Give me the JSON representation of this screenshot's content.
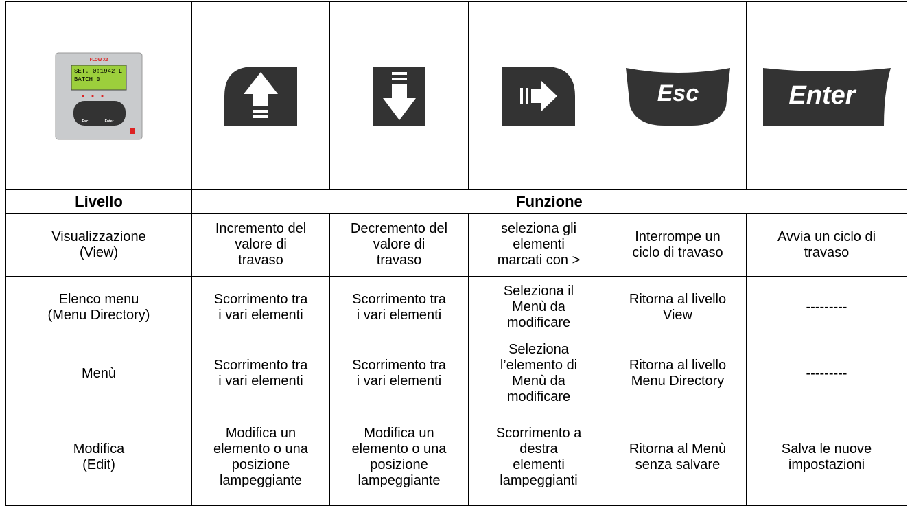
{
  "device": {
    "brand": "FLOW X3",
    "lcd": [
      "SET. 0:1942 L",
      "BATCH 0"
    ]
  },
  "buttons": {
    "esc": "Esc",
    "enter": "Enter"
  },
  "header": {
    "level": "Livello",
    "function": "Funzione"
  },
  "rows": [
    {
      "level": [
        "Visualizzazione",
        "(View)"
      ],
      "cells": [
        [
          "Incremento del",
          "valore di",
          "travaso"
        ],
        [
          "Decremento del",
          "valore di",
          "travaso"
        ],
        [
          "seleziona gli",
          "elementi",
          "marcati con >"
        ],
        [
          "Interrompe un",
          "ciclo di travaso"
        ],
        [
          "Avvia un ciclo di",
          "travaso"
        ]
      ]
    },
    {
      "level": [
        "Elenco menu",
        "(Menu Directory)"
      ],
      "cells": [
        [
          "Scorrimento tra",
          "i vari elementi"
        ],
        [
          "Scorrimento tra",
          "i vari elementi"
        ],
        [
          "Seleziona il",
          "Menù da",
          "modificare"
        ],
        [
          "Ritorna al livello",
          "View"
        ],
        [
          "---------"
        ]
      ]
    },
    {
      "level": [
        "Menù"
      ],
      "cells": [
        [
          "Scorrimento tra",
          "i vari elementi"
        ],
        [
          "Scorrimento tra",
          "i vari elementi"
        ],
        [
          "Seleziona",
          "l’elemento di",
          "Menù da",
          "modificare"
        ],
        [
          "Ritorna al livello",
          "Menu Directory"
        ],
        [
          "---------"
        ]
      ]
    },
    {
      "level": [
        "Modifica",
        "(Edit)"
      ],
      "cells": [
        [
          "Modifica un",
          "elemento o una",
          "posizione",
          "lampeggiante"
        ],
        [
          "Modifica un",
          "elemento o una",
          "posizione",
          "lampeggiante"
        ],
        [
          "Scorrimento a",
          "destra",
          "elementi",
          "lampeggianti"
        ],
        [
          "Ritorna al Menù",
          "senza salvare"
        ],
        [
          "Salva le nuove",
          "impostazioni"
        ]
      ]
    }
  ]
}
